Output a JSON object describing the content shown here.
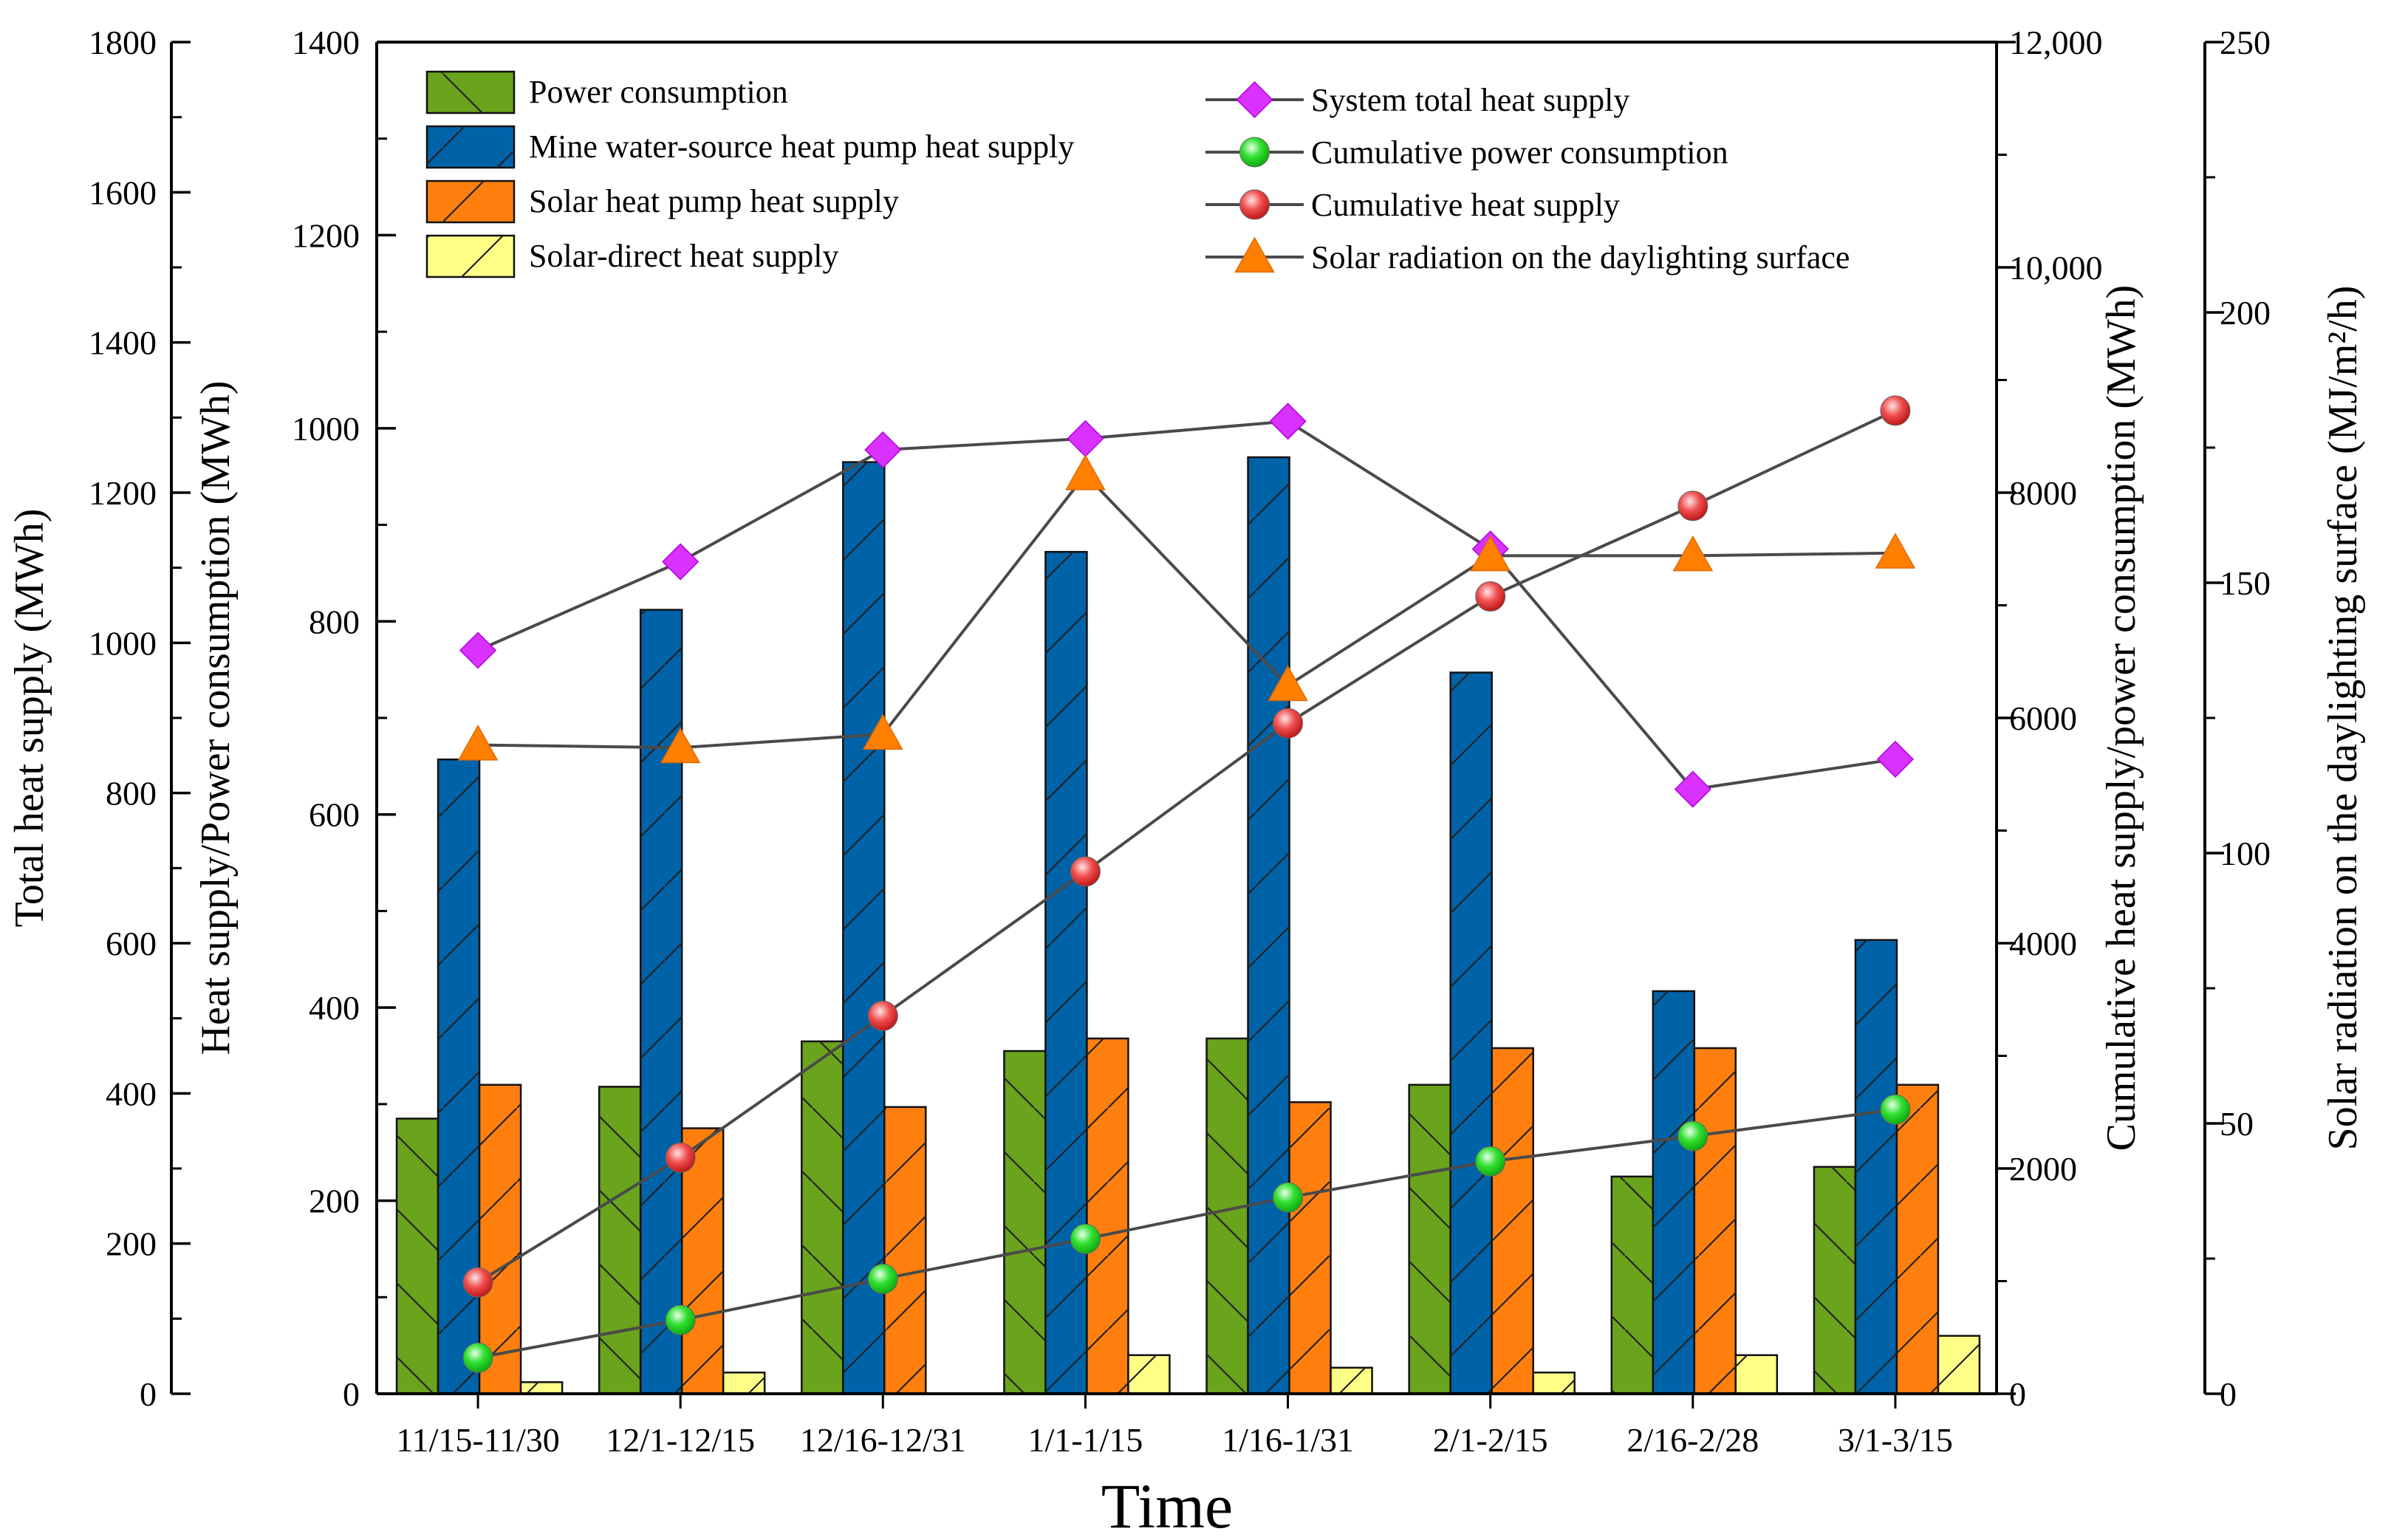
{
  "chart_data": {
    "type": "bar",
    "title": "",
    "xlabel": "Time",
    "categories": [
      "11/15-11/30",
      "12/1-12/15",
      "12/16-12/31",
      "1/1-1/15",
      "1/16-1/31",
      "2/1-2/15",
      "2/16-2/28",
      "3/1-3/15"
    ],
    "axes": {
      "left_outer": {
        "label": "Total  heat supply (MWh)",
        "ylim": [
          0,
          1800
        ],
        "ticks": [
          0,
          200,
          400,
          600,
          800,
          1000,
          1200,
          1400,
          1600,
          1800
        ],
        "tick_labels": [
          "0",
          "200",
          "400",
          "600",
          "800",
          "1000",
          "1200",
          "1400",
          "1600",
          "1800"
        ]
      },
      "left_inner": {
        "label": "Heat supply/Power consumption (MWh)",
        "ylim": [
          0,
          1400
        ],
        "ticks": [
          0,
          200,
          400,
          600,
          800,
          1000,
          1200,
          1400
        ],
        "tick_labels": [
          "0",
          "200",
          "400",
          "600",
          "800",
          "1000",
          "1200",
          "1400"
        ]
      },
      "right_inner": {
        "label": "Cumulative heat supply/power consumption (MWh)",
        "ylim": [
          0,
          12000
        ],
        "ticks": [
          0,
          2000,
          4000,
          6000,
          8000,
          10000,
          12000
        ],
        "tick_labels": [
          "0",
          "2000",
          "4000",
          "6000",
          "8000",
          "10,000",
          "12,000"
        ]
      },
      "right_outer": {
        "label": "Solar radiation on the daylighting surface (MJ/m²/h)",
        "ylim": [
          0,
          250
        ],
        "ticks": [
          0,
          50,
          100,
          150,
          200,
          250
        ],
        "tick_labels": [
          "0",
          "50",
          "100",
          "150",
          "200",
          "250"
        ]
      }
    },
    "bar_series": [
      {
        "name": "Power consumption",
        "axis": "left_inner",
        "color": "#6aa31c",
        "hatch": "backslash",
        "values": [
          285,
          318,
          365,
          355,
          368,
          320,
          225,
          235
        ]
      },
      {
        "name": "Mine water-source heat pump heat supply",
        "axis": "left_inner",
        "color": "#0063a8",
        "hatch": "slash",
        "values": [
          657,
          812,
          965,
          872,
          970,
          747,
          417,
          470
        ]
      },
      {
        "name": "Solar heat pump heat supply",
        "axis": "left_inner",
        "color": "#ff7f0e",
        "hatch": "slash",
        "values": [
          320,
          275,
          297,
          368,
          302,
          358,
          358,
          320
        ]
      },
      {
        "name": "Solar-direct heat supply",
        "axis": "left_inner",
        "color": "#ffff88",
        "hatch": "slash",
        "values": [
          12,
          22,
          0,
          40,
          27,
          22,
          40,
          60
        ]
      }
    ],
    "line_series": [
      {
        "name": "System total heat supply",
        "axis": "left_outer",
        "color": "#d932ff",
        "marker": "diamond",
        "values": [
          990,
          1108,
          1257,
          1272,
          1295,
          1125,
          805,
          845
        ]
      },
      {
        "name": "Cumulative power consumption",
        "axis": "right_inner",
        "color": "#22dd22",
        "marker": "sphere",
        "values": [
          320,
          655,
          1020,
          1375,
          1743,
          2063,
          2288,
          2523
        ]
      },
      {
        "name": "Cumulative heat supply",
        "axis": "right_inner",
        "color": "#e02020",
        "marker": "sphere",
        "values": [
          989,
          2096,
          3356,
          4637,
          5953,
          7079,
          7883,
          8729
        ]
      },
      {
        "name": "Solar radiation on the daylighting surface",
        "axis": "right_outer",
        "color": "#ff8000",
        "marker": "triangle",
        "values": [
          120,
          119.5,
          122,
          170,
          131,
          155,
          155,
          155.5
        ]
      }
    ]
  }
}
